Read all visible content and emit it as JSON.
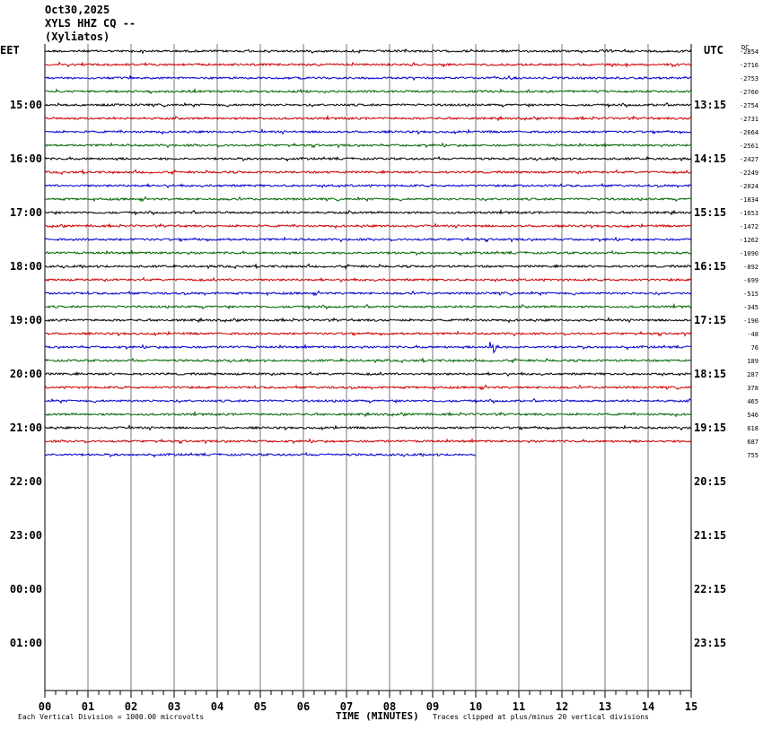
{
  "header": {
    "date": "Oct30,2025",
    "station": "XYLS HHZ CQ --",
    "location": "(Xyliatos)"
  },
  "timezones": {
    "left": "EET",
    "right": "UTC"
  },
  "right_corner_label": "DC",
  "footer": {
    "scale_note": "Each Vertical Division = 1000.00 microvolts",
    "axis_title": "TIME (MINUTES)",
    "clip_note": "Traces clipped at plus/minus 20 vertical divisions"
  },
  "chart_data": {
    "type": "line",
    "title": "XYLS HHZ CQ --",
    "xlabel": "TIME (MINUTES)",
    "xlim": [
      0,
      15
    ],
    "x_ticks": [
      "00",
      "01",
      "02",
      "03",
      "04",
      "05",
      "06",
      "07",
      "08",
      "09",
      "10",
      "11",
      "12",
      "13",
      "14",
      "15"
    ],
    "rows_per_hour": 4,
    "row_minutes": 15,
    "hour_labels_left": [
      "15:00",
      "16:00",
      "17:00",
      "18:00",
      "19:00",
      "20:00",
      "21:00",
      "22:00",
      "23:00",
      "00:00",
      "01:00"
    ],
    "hour_labels_right": [
      "13:15",
      "14:15",
      "15:15",
      "16:15",
      "17:15",
      "18:15",
      "19:15",
      "20:15",
      "21:15",
      "22:15",
      "23:15"
    ],
    "trace_colors": [
      "#000000",
      "#cc0000",
      "#0000cc",
      "#006600"
    ],
    "trace_dc_offsets": [
      "-2854",
      "-2716",
      "-2753",
      "-2760",
      "-2754",
      "-2731",
      "-2664",
      "-2561",
      "-2427",
      "-2249",
      "-2024",
      "-1834",
      "-1653",
      "-1472",
      "-1262",
      "-1090",
      "-892",
      "-699",
      "-515",
      "-345",
      "-190",
      "-48",
      "76",
      "189",
      "287",
      "378",
      "465",
      "546",
      "618",
      "687",
      "755"
    ],
    "trace_end_minutes": [
      15,
      15,
      15,
      15,
      15,
      15,
      15,
      15,
      15,
      15,
      15,
      15,
      15,
      15,
      15,
      15,
      15,
      15,
      15,
      15,
      15,
      15,
      15,
      15,
      15,
      15,
      15,
      15,
      15,
      15,
      10
    ],
    "event": {
      "trace_index": 22,
      "minute": 10.3
    },
    "total_row_slots": 48
  }
}
